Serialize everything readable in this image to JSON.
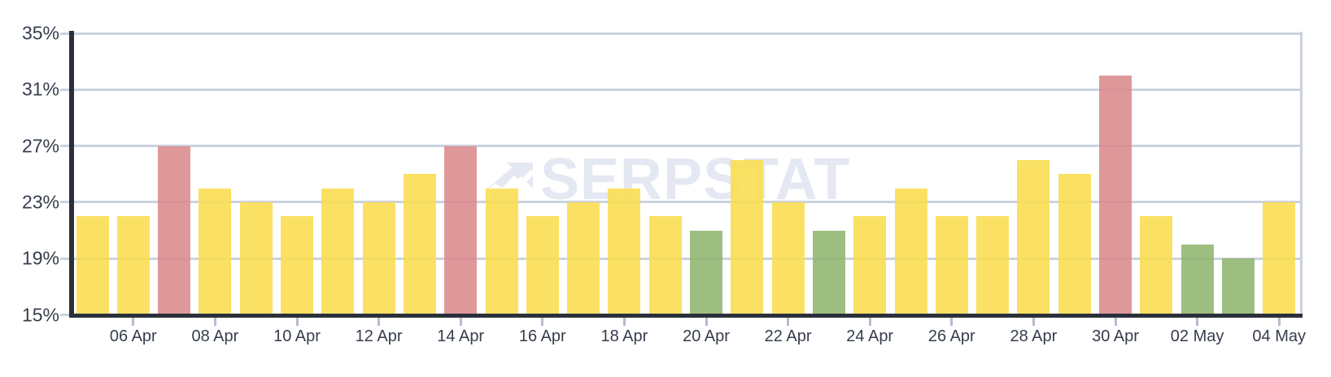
{
  "watermark": {
    "text": "SERPSTAT",
    "icon": "serpstat-arrow-logo"
  },
  "chart_data": {
    "type": "bar",
    "title": "",
    "xlabel": "",
    "ylabel": "",
    "ylim": [
      15,
      35
    ],
    "grid": "horizontal",
    "legend": "none",
    "y_tick_labels": [
      "35%",
      "31%",
      "27%",
      "23%",
      "19%",
      "15%"
    ],
    "y_tick_values": [
      35,
      31,
      27,
      23,
      19,
      15
    ],
    "x_tick_labels": [
      "06 Apr",
      "08 Apr",
      "10 Apr",
      "12 Apr",
      "14 Apr",
      "16 Apr",
      "18 Apr",
      "20 Apr",
      "22 Apr",
      "24 Apr",
      "26 Apr",
      "28 Apr",
      "30 Apr",
      "02 May",
      "04 May"
    ],
    "categories": [
      "05 Apr",
      "06 Apr",
      "07 Apr",
      "08 Apr",
      "09 Apr",
      "10 Apr",
      "11 Apr",
      "12 Apr",
      "13 Apr",
      "14 Apr",
      "15 Apr",
      "16 Apr",
      "17 Apr",
      "18 Apr",
      "19 Apr",
      "20 Apr",
      "21 Apr",
      "22 Apr",
      "23 Apr",
      "24 Apr",
      "25 Apr",
      "26 Apr",
      "27 Apr",
      "28 Apr",
      "29 Apr",
      "30 Apr",
      "01 May",
      "02 May",
      "03 May",
      "04 May"
    ],
    "values": [
      22,
      22,
      27,
      24,
      23,
      22,
      24,
      23,
      25,
      27,
      24,
      22,
      23,
      24,
      22,
      21,
      26,
      23,
      21,
      22,
      24,
      22,
      22,
      26,
      25,
      32,
      22,
      20,
      19,
      23
    ],
    "colors": [
      "yellow",
      "yellow",
      "red",
      "yellow",
      "yellow",
      "yellow",
      "yellow",
      "yellow",
      "yellow",
      "red",
      "yellow",
      "yellow",
      "yellow",
      "yellow",
      "yellow",
      "green",
      "yellow",
      "yellow",
      "green",
      "yellow",
      "yellow",
      "yellow",
      "yellow",
      "yellow",
      "yellow",
      "red",
      "yellow",
      "green",
      "green",
      "yellow"
    ],
    "unit": "%"
  },
  "palette": {
    "yellow": "#F9DD4F",
    "red": "#DB8A8C",
    "green": "#90B56F",
    "gridline": "#CBD2DF",
    "axis": "#2B303A",
    "tick_mark": "#B4BDCE",
    "axis_label": "#363D4C",
    "watermark": "#E4E8F2"
  }
}
